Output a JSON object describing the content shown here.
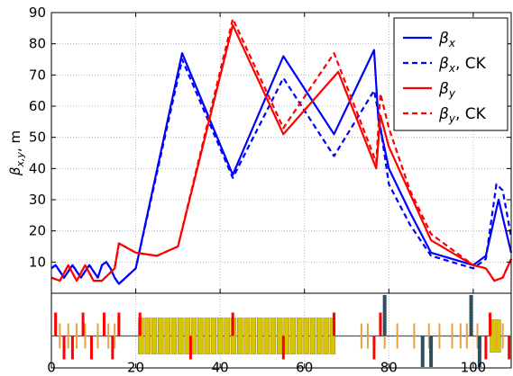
{
  "chart_data": [
    {
      "type": "line",
      "title": "",
      "xlabel": "",
      "ylabel": "β_{x,y}, m",
      "xlim": [
        0,
        109
      ],
      "ylim": [
        0,
        90
      ],
      "grid": true,
      "x_ticks": [
        "0",
        "20",
        "40",
        "60",
        "80",
        "100"
      ],
      "y_ticks": [
        "10",
        "20",
        "30",
        "40",
        "50",
        "60",
        "70",
        "80",
        "90"
      ],
      "legend": {
        "placement": "top-right",
        "entries": [
          "βx",
          "βx, CK",
          "βy",
          "βy, CK"
        ]
      },
      "series": [
        {
          "name": "βx",
          "color": "#0000ff",
          "style": "solid",
          "x": [
            0,
            1,
            2,
            3,
            4,
            5,
            6,
            7,
            8,
            9,
            10,
            11,
            12,
            13,
            14,
            15,
            16,
            20,
            31,
            43,
            55,
            67,
            76.5,
            77.5,
            80,
            85,
            90,
            100,
            103,
            106,
            109
          ],
          "y": [
            8,
            9,
            7,
            5,
            7,
            9,
            7,
            5,
            7,
            9,
            7,
            5,
            9,
            10,
            8,
            5,
            3,
            8,
            77,
            38,
            76,
            51,
            78,
            56,
            40,
            26,
            13,
            9,
            12,
            30,
            13
          ]
        },
        {
          "name": "βx, CK",
          "color": "#0000ff",
          "style": "dashed",
          "x": [
            0,
            1,
            2,
            3,
            4,
            5,
            6,
            7,
            8,
            9,
            10,
            11,
            12,
            13,
            14,
            15,
            16,
            20,
            31,
            43,
            55,
            67,
            76.5,
            77.5,
            80,
            85,
            90,
            100,
            103,
            105.5,
            107,
            109
          ],
          "y": [
            8,
            9,
            7,
            5,
            7,
            9,
            7,
            5,
            7,
            9,
            7,
            5,
            9,
            10,
            8,
            5,
            3,
            8,
            75,
            37,
            69,
            44,
            65,
            58,
            35,
            22,
            12,
            8,
            11,
            35,
            33,
            18
          ]
        },
        {
          "name": "βy",
          "color": "#ff0000",
          "style": "solid",
          "x": [
            0,
            2,
            4,
            6,
            8,
            10,
            12,
            15,
            16,
            20,
            25,
            30,
            43,
            55,
            68,
            77,
            78,
            80,
            85,
            90,
            100,
            103,
            105,
            107,
            109
          ],
          "y": [
            5,
            4,
            9,
            4,
            9,
            4,
            4,
            8,
            16,
            13,
            12,
            15,
            86,
            51,
            71,
            40,
            57,
            47,
            32,
            17,
            9,
            8,
            4,
            5,
            11
          ]
        },
        {
          "name": "βy, CK",
          "color": "#ff0000",
          "style": "dashed",
          "x": [
            0,
            2,
            4,
            6,
            8,
            10,
            12,
            15,
            16,
            20,
            25,
            30,
            43,
            55,
            67,
            77,
            78,
            80,
            85,
            90,
            100,
            103,
            105,
            107,
            109
          ],
          "y": [
            5,
            4,
            9,
            4,
            9,
            4,
            4,
            8,
            16,
            13,
            12,
            15,
            88,
            53,
            77,
            42,
            64,
            53,
            33,
            19,
            9,
            8,
            4,
            5,
            11
          ]
        }
      ]
    },
    {
      "type": "bar",
      "title": "",
      "xlabel": "",
      "ylabel": "",
      "xlim": [
        0,
        109
      ],
      "magnet_lattice": {
        "dipole_block": {
          "color": "#d4c600",
          "edge": "#b08000",
          "x_start": 20.5,
          "x_end": 67.5,
          "count": 30
        },
        "quadrupoles": {
          "color": "#ff0000",
          "items": [
            {
              "x": 1,
              "sign": 1
            },
            {
              "x": 3,
              "sign": -1
            },
            {
              "x": 5,
              "sign": -1
            },
            {
              "x": 7.5,
              "sign": 1
            },
            {
              "x": 9.5,
              "sign": -1
            },
            {
              "x": 12.5,
              "sign": 1
            },
            {
              "x": 14.5,
              "sign": -1
            },
            {
              "x": 16,
              "sign": 1
            },
            {
              "x": 21,
              "sign": 1
            },
            {
              "x": 33,
              "sign": -1
            },
            {
              "x": 43,
              "sign": 1
            },
            {
              "x": 55,
              "sign": -1
            },
            {
              "x": 67,
              "sign": 1
            },
            {
              "x": 76.5,
              "sign": -1
            },
            {
              "x": 78,
              "sign": 1
            },
            {
              "x": 103,
              "sign": -1
            },
            {
              "x": 104,
              "sign": 1
            },
            {
              "x": 108.5,
              "sign": -1
            }
          ]
        },
        "correctors": {
          "color": "#e8a040",
          "x": [
            2,
            4,
            6,
            8,
            11,
            13.5,
            15,
            73.5,
            75,
            79,
            82,
            86,
            89.5,
            92,
            95,
            97,
            98.5,
            101,
            105.5,
            107
          ]
        },
        "diagnostics": {
          "color": "#2f4f5f",
          "items": [
            {
              "x": 79,
              "sign": 1
            },
            {
              "x": 88,
              "sign": -1
            },
            {
              "x": 90,
              "sign": -1
            },
            {
              "x": 99.5,
              "sign": 1
            },
            {
              "x": 101.5,
              "sign": -1
            }
          ]
        },
        "extra_blocks": [
          {
            "x_start": 104,
            "x_end": 106.5,
            "color": "#d4c600"
          }
        ]
      }
    }
  ]
}
